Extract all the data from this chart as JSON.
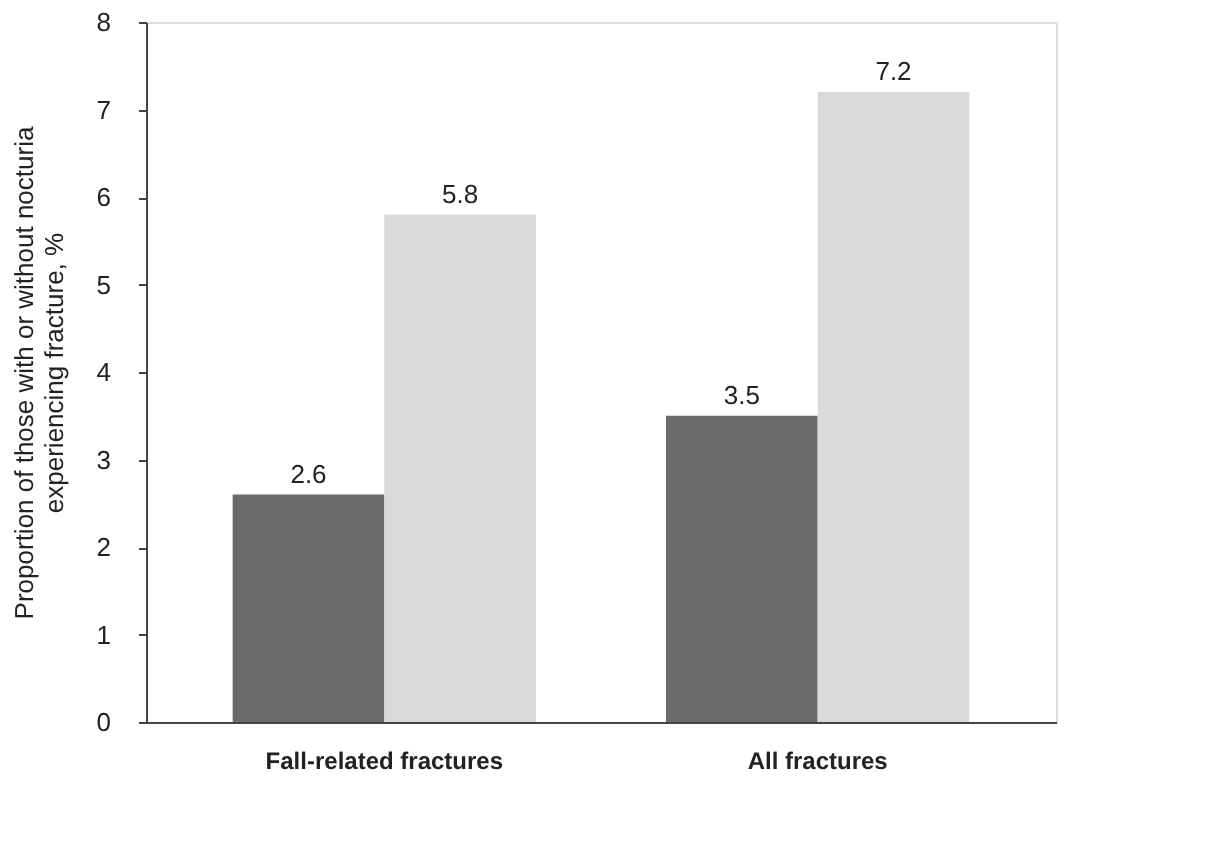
{
  "chart_data": {
    "type": "bar",
    "ylabel": "Proportion of those with or without nocturia\nexperiencing fracture, %",
    "categories": [
      "Fall-related fractures",
      "All fractures"
    ],
    "series": [
      {
        "color": "#6b6b6b",
        "values": [
          2.6,
          3.5
        ]
      },
      {
        "color": "#d9d9d9",
        "values": [
          5.8,
          7.2
        ]
      }
    ],
    "ylim": [
      0,
      8
    ],
    "yticks": [
      0,
      1,
      2,
      3,
      4,
      5,
      6,
      7,
      8
    ],
    "grid": false,
    "legend": false,
    "data_labels": true
  }
}
